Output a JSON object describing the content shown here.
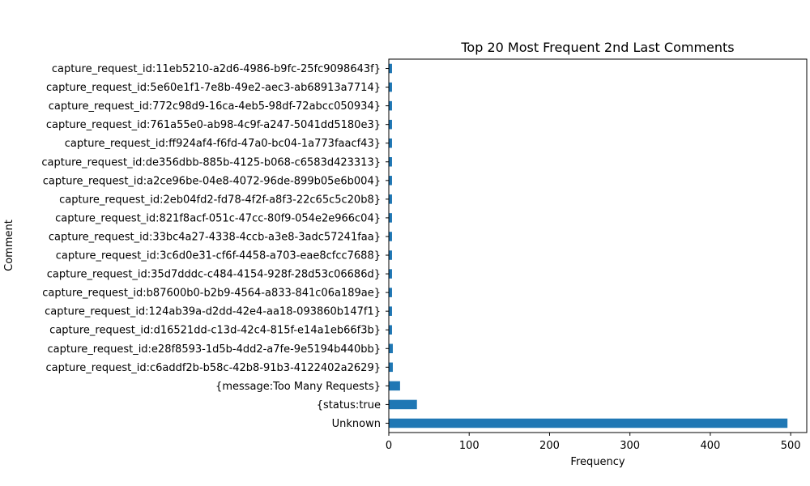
{
  "chart_data": {
    "type": "bar",
    "orientation": "horizontal",
    "title": "Top 20 Most Frequent 2nd Last Comments",
    "xlabel": "Frequency",
    "ylabel": "Comment",
    "xlim": [
      0,
      520
    ],
    "xticks": [
      0,
      100,
      200,
      300,
      400,
      500
    ],
    "grid": false,
    "legend": "none",
    "bar_color": "#1f77b4",
    "categories": [
      "Unknown",
      "{status:true",
      "{message:Too Many Requests}",
      "capture_request_id:c6addf2b-b58c-42b8-91b3-4122402a2629}",
      "capture_request_id:e28f8593-1d5b-4dd2-a7fe-9e5194b440bb}",
      "capture_request_id:d16521dd-c13d-42c4-815f-e14a1eb66f3b}",
      "capture_request_id:124ab39a-d2dd-42e4-aa18-093860b147f1}",
      "capture_request_id:b87600b0-b2b9-4564-a833-841c06a189ae}",
      "capture_request_id:35d7dddc-c484-4154-928f-28d53c06686d}",
      "capture_request_id:3c6d0e31-cf6f-4458-a703-eae8cfcc7688}",
      "capture_request_id:33bc4a27-4338-4ccb-a3e8-3adc57241faa}",
      "capture_request_id:821f8acf-051c-47cc-80f9-054e2e966c04}",
      "capture_request_id:2eb04fd2-fd78-4f2f-a8f3-22c65c5c20b8}",
      "capture_request_id:a2ce96be-04e8-4072-96de-899b05e6b004}",
      "capture_request_id:de356dbb-885b-4125-b068-c6583d423313}",
      "capture_request_id:ff924af4-f6fd-47a0-bc04-1a773faacf43}",
      "capture_request_id:761a55e0-ab98-4c9f-a247-5041dd5180e3}",
      "capture_request_id:772c98d9-16ca-4eb5-98df-72abcc050934}",
      "capture_request_id:5e60e1f1-7e8b-49e2-aec3-ab68913a7714}",
      "capture_request_id:11eb5210-a2d6-4986-b9fc-25fc9098643f}"
    ],
    "values": [
      496,
      35,
      14,
      5,
      5,
      4,
      4,
      4,
      4,
      4,
      4,
      4,
      4,
      4,
      4,
      4,
      4,
      4,
      4,
      4
    ]
  }
}
